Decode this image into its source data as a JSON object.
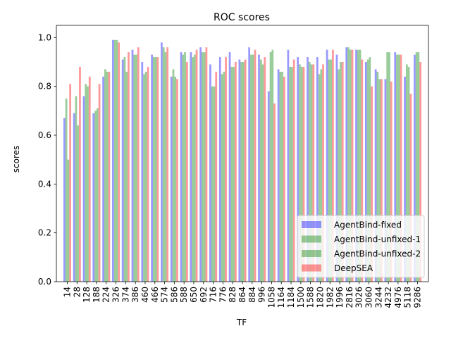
{
  "chart_data": {
    "type": "bar",
    "title": "ROC scores",
    "xlabel": "TF",
    "ylabel": "scores",
    "ylim": [
      0,
      1.05
    ],
    "yticks": [
      "0.0",
      "0.2",
      "0.4",
      "0.6",
      "0.8",
      "1.0"
    ],
    "legend_position": "lower-right",
    "categories": [
      "14",
      "28",
      "128",
      "188",
      "224",
      "326",
      "374",
      "386",
      "460",
      "466",
      "574",
      "586",
      "588",
      "650",
      "692",
      "716",
      "776",
      "828",
      "864",
      "884",
      "996",
      "1058",
      "1164",
      "1184",
      "1500",
      "1588",
      "1820",
      "1982",
      "1996",
      "2816",
      "3026",
      "3060",
      "3244",
      "4232",
      "4976",
      "5118",
      "9286"
    ],
    "series": [
      {
        "name": "AgentBind-fixed",
        "color": "#0000ff",
        "values": [
          0.67,
          0.69,
          0.76,
          0.69,
          0.84,
          0.99,
          0.91,
          0.95,
          0.9,
          0.93,
          0.98,
          0.84,
          0.94,
          0.94,
          0.96,
          0.89,
          0.92,
          0.94,
          0.91,
          0.96,
          0.93,
          0.78,
          0.87,
          0.95,
          0.92,
          0.92,
          0.92,
          0.95,
          0.93,
          0.96,
          0.95,
          0.9,
          0.87,
          0.83,
          0.94,
          0.84,
          0.93
        ]
      },
      {
        "name": "AgentBind-unfixed-1",
        "color": "#008000",
        "values": [
          0.75,
          0.76,
          0.81,
          0.7,
          0.87,
          0.99,
          0.92,
          0.93,
          0.85,
          0.92,
          0.96,
          0.87,
          0.93,
          0.92,
          0.94,
          0.8,
          0.85,
          0.88,
          0.9,
          0.93,
          0.91,
          0.94,
          0.86,
          0.88,
          0.89,
          0.9,
          0.85,
          0.91,
          0.87,
          0.96,
          0.95,
          0.91,
          0.86,
          0.94,
          0.93,
          0.89,
          0.94
        ]
      },
      {
        "name": "AgentBind-unfixed-2",
        "color": "#008000",
        "values": [
          0.5,
          0.64,
          0.8,
          0.71,
          0.86,
          0.99,
          0.86,
          0.93,
          0.86,
          0.92,
          0.94,
          0.84,
          0.94,
          0.93,
          0.94,
          0.8,
          0.86,
          0.88,
          0.9,
          0.93,
          0.89,
          0.95,
          0.86,
          0.88,
          0.88,
          0.89,
          0.87,
          0.91,
          0.9,
          0.95,
          0.95,
          0.92,
          0.83,
          0.94,
          0.93,
          0.88,
          0.94
        ]
      },
      {
        "name": "DeepSEA",
        "color": "#ff0000",
        "values": [
          0.81,
          0.88,
          0.84,
          0.81,
          0.86,
          0.98,
          0.94,
          0.96,
          0.88,
          0.92,
          0.96,
          0.83,
          0.9,
          0.95,
          0.96,
          0.86,
          0.92,
          0.9,
          0.91,
          0.95,
          0.92,
          0.73,
          0.84,
          0.91,
          0.88,
          0.89,
          0.89,
          0.95,
          0.9,
          0.95,
          0.91,
          0.8,
          0.83,
          0.82,
          0.93,
          0.77,
          0.9
        ]
      }
    ]
  }
}
